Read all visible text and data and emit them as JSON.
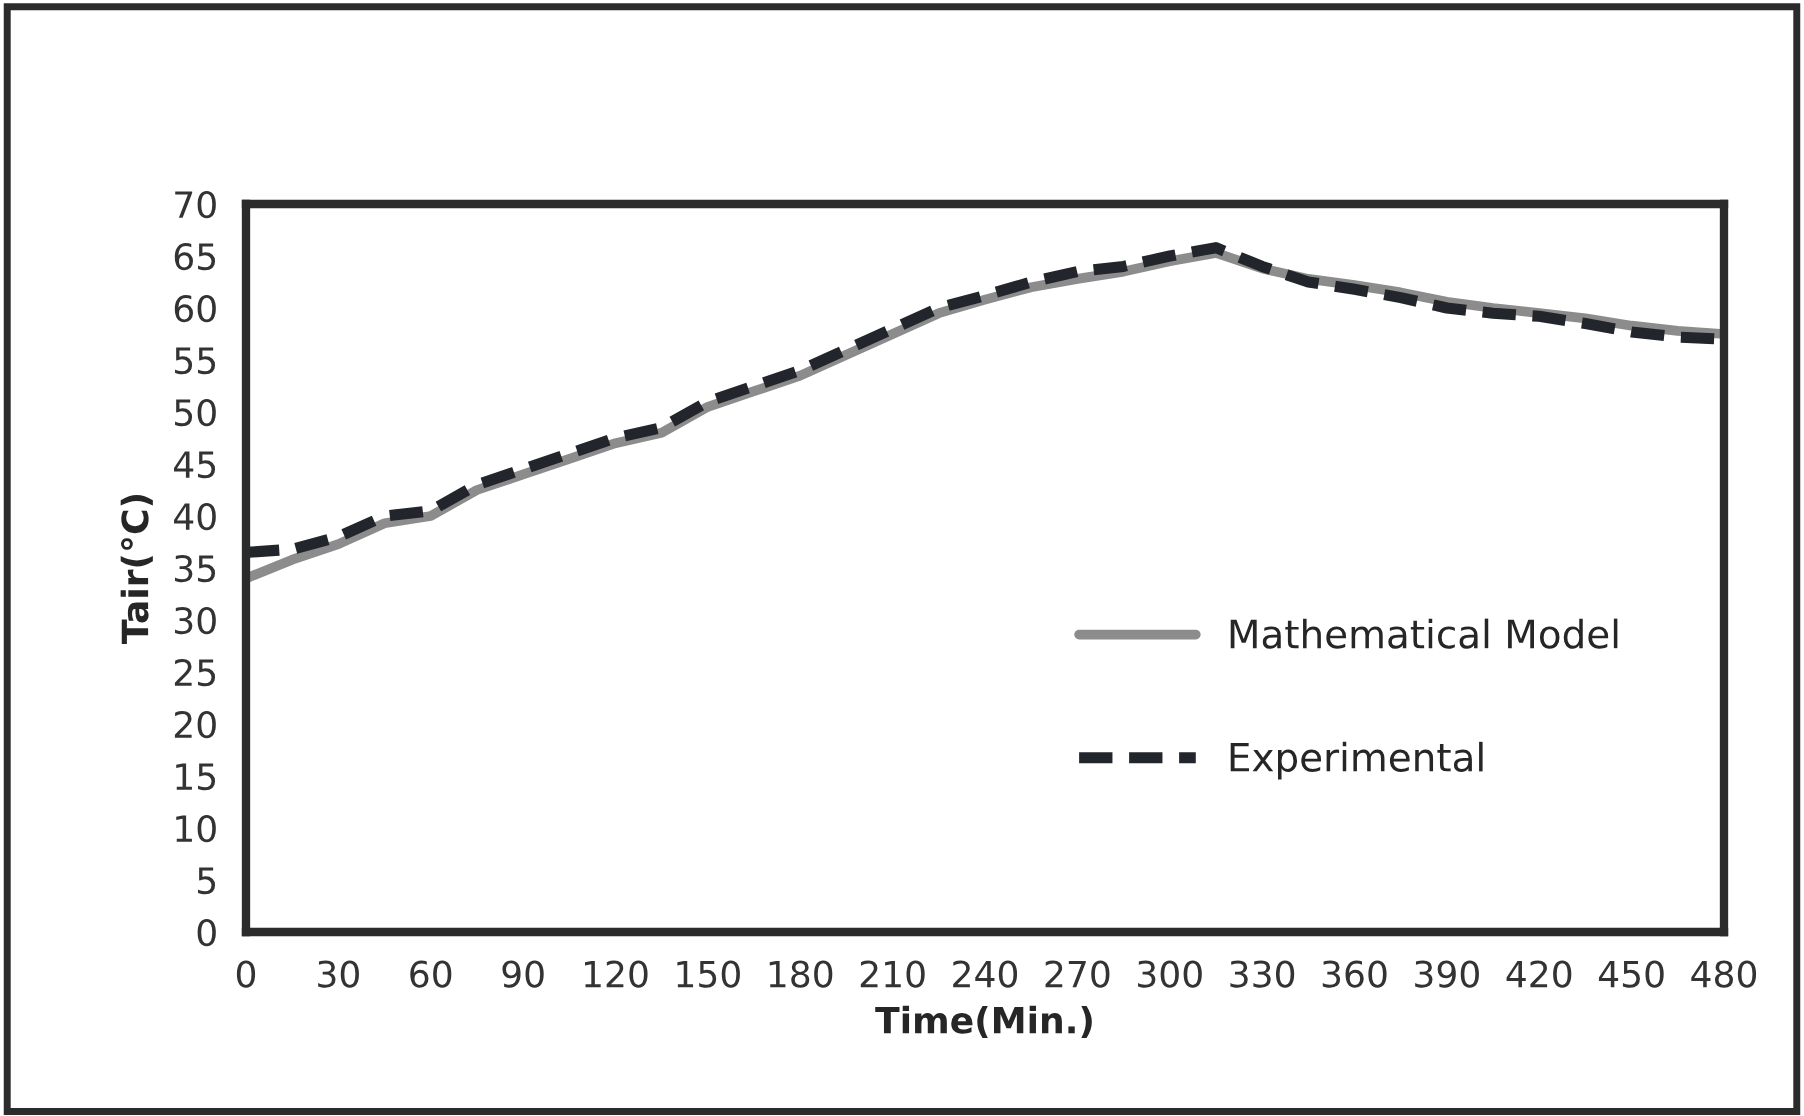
{
  "chart_data": {
    "type": "line",
    "xlabel": "Time(Min.)",
    "ylabel": "Tair(°C)",
    "x": [
      0,
      15,
      30,
      45,
      60,
      75,
      90,
      105,
      120,
      135,
      150,
      165,
      180,
      195,
      210,
      225,
      240,
      255,
      270,
      285,
      300,
      315,
      330,
      345,
      360,
      375,
      390,
      405,
      420,
      435,
      450,
      465,
      480
    ],
    "series": [
      {
        "name": "Mathematical Model",
        "color": "#8c8c8c",
        "line_style": "solid",
        "values": [
          34,
          35.8,
          37.3,
          39.3,
          40,
          42.5,
          44,
          45.5,
          47,
          48,
          50.5,
          52,
          53.5,
          55.5,
          57.5,
          59.5,
          60.8,
          62,
          62.8,
          63.5,
          64.5,
          65.3,
          63.8,
          62.8,
          62.2,
          61.5,
          60.6,
          60,
          59.5,
          59,
          58.3,
          57.8,
          57.5
        ]
      },
      {
        "name": "Experimental",
        "color": "#22252b",
        "line_style": "dashed",
        "values": [
          36.5,
          36.8,
          38,
          40,
          40.5,
          43,
          44.5,
          46,
          47.5,
          48.5,
          51,
          52.5,
          54,
          56,
          58,
          60,
          61.2,
          62.5,
          63.5,
          64,
          65,
          65.8,
          64,
          62.5,
          61.8,
          61,
          60,
          59.5,
          59.2,
          58.5,
          57.7,
          57.2,
          57
        ]
      }
    ],
    "xlim": [
      0,
      480
    ],
    "xticks": [
      0,
      30,
      60,
      90,
      120,
      150,
      180,
      210,
      240,
      270,
      300,
      330,
      360,
      390,
      420,
      450,
      480
    ],
    "ylim": [
      0,
      70
    ],
    "yticks": [
      0,
      5,
      10,
      15,
      20,
      25,
      30,
      35,
      40,
      45,
      50,
      55,
      60,
      65,
      70
    ],
    "grid": false,
    "legend": "right"
  }
}
